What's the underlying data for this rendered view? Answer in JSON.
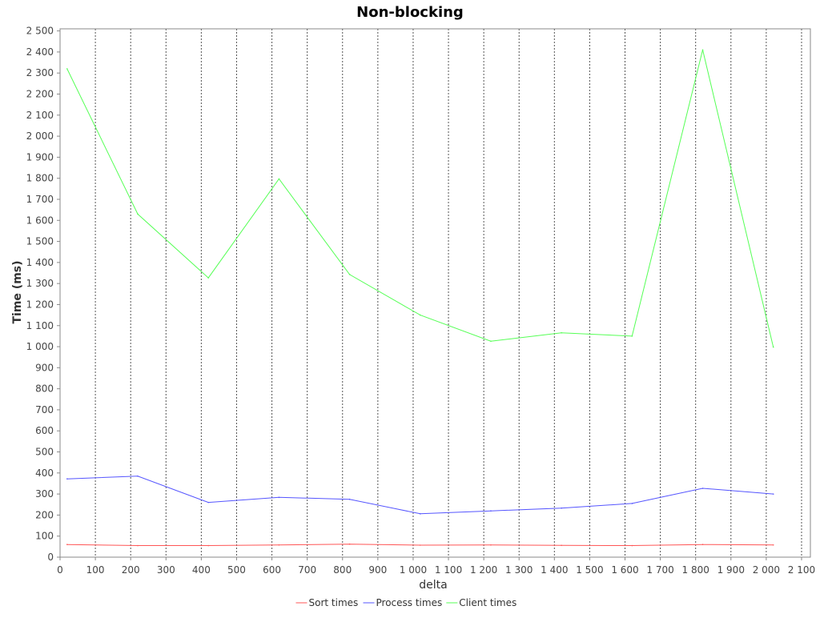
{
  "chart_data": {
    "type": "line",
    "title": "Non-blocking",
    "xlabel": "delta",
    "ylabel": "Time (ms)",
    "xlim": [
      0,
      2125
    ],
    "ylim": [
      0,
      2510
    ],
    "x_ticks": [
      0,
      100,
      200,
      300,
      400,
      500,
      600,
      700,
      800,
      900,
      1000,
      1100,
      1200,
      1300,
      1400,
      1500,
      1600,
      1700,
      1800,
      1900,
      2000,
      2100
    ],
    "x_tick_labels": [
      "0",
      "100",
      "200",
      "300",
      "400",
      "500",
      "600",
      "700",
      "800",
      "900",
      "1 000",
      "1 100",
      "1 200",
      "1 300",
      "1 400",
      "1 500",
      "1 600",
      "1 700",
      "1 800",
      "1 900",
      "2 000",
      "2 100"
    ],
    "y_ticks": [
      0,
      100,
      200,
      300,
      400,
      500,
      600,
      700,
      800,
      900,
      1000,
      1100,
      1200,
      1300,
      1400,
      1500,
      1600,
      1700,
      1800,
      1900,
      2000,
      2100,
      2200,
      2300,
      2400,
      2500
    ],
    "y_tick_labels": [
      "0",
      "100",
      "200",
      "300",
      "400",
      "500",
      "600",
      "700",
      "800",
      "900",
      "1 000",
      "1 100",
      "1 200",
      "1 300",
      "1 400",
      "1 500",
      "1 600",
      "1 700",
      "1 800",
      "1 900",
      "2 000",
      "2 100",
      "2 200",
      "2 300",
      "2 400",
      "2 500"
    ],
    "grid": {
      "vertical": true,
      "horizontal": false
    },
    "legend_position": "bottom",
    "x": [
      20,
      220,
      420,
      620,
      820,
      1020,
      1220,
      1420,
      1620,
      1820,
      2020
    ],
    "series": [
      {
        "name": "Sort times",
        "color": "#ff5555",
        "values": [
          60,
          55,
          55,
          58,
          62,
          57,
          58,
          56,
          55,
          60,
          58
        ]
      },
      {
        "name": "Process times",
        "color": "#5555ff",
        "values": [
          372,
          385,
          260,
          284,
          275,
          206,
          220,
          233,
          255,
          327,
          300
        ]
      },
      {
        "name": "Client times",
        "color": "#55ff55",
        "values": [
          2320,
          1630,
          1327,
          1797,
          1343,
          1150,
          1026,
          1066,
          1050,
          2410,
          998
        ]
      }
    ]
  }
}
